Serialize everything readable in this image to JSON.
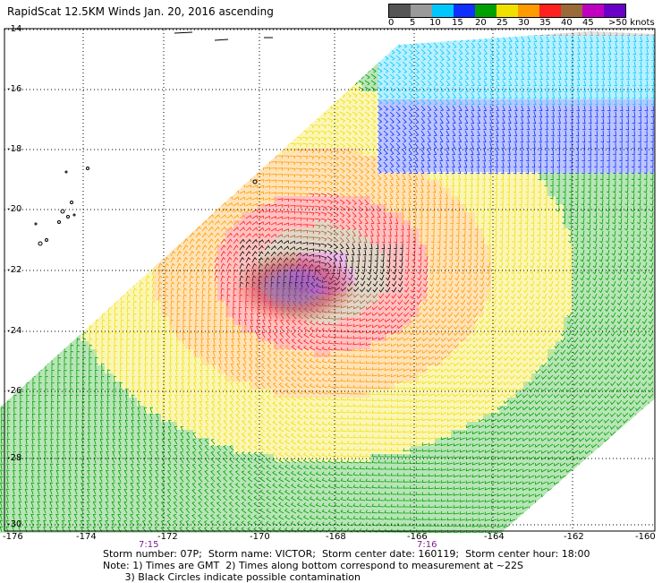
{
  "title": "RapidScat 12.5KM Winds Jan. 20, 2016 ascending",
  "legend": {
    "ticks": [
      "0",
      "5",
      "10",
      "15",
      "20",
      "25",
      "30",
      "35",
      "40",
      "45",
      ">50 knots"
    ],
    "colors": [
      "#555555",
      "#9a9a9a",
      "#00c8ff",
      "#1030ff",
      "#00a000",
      "#f0e000",
      "#ff9a00",
      "#ff2020",
      "#9a6a3a",
      "#c000c0",
      "#6a00c8"
    ]
  },
  "axes": {
    "y_labels": [
      "-14",
      "-16",
      "-18",
      "-20",
      "-22",
      "-24",
      "-26",
      "-28",
      "-30"
    ],
    "x_labels": [
      "-176",
      "-174",
      "-172",
      "-170",
      "-168",
      "-166",
      "-164",
      "-162",
      "-160"
    ],
    "times": [
      "7:15",
      "7:16"
    ]
  },
  "footer": {
    "line1": "Storm number: 07P;  Storm name: VICTOR;  Storm center date: 160119;  Storm center hour: 18:00",
    "line2": "Note: 1) Times are GMT  2) Times along bottom correspond to measurement at ~22S",
    "line3": "       3) Black Circles indicate possible contamination"
  }
}
